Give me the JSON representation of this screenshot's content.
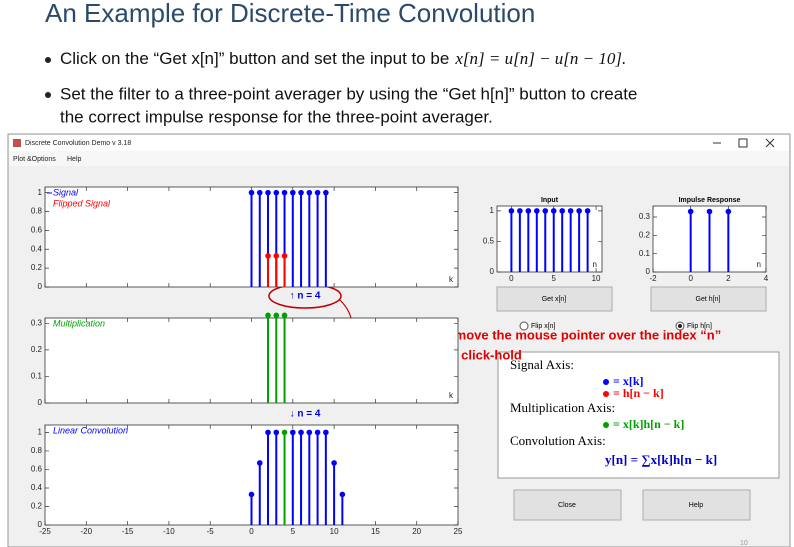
{
  "slide": {
    "title": "An Example for Discrete-Time Convolution",
    "bullets": [
      {
        "lines": [
          "Click on the “Get x[n]” button and set the input to be"
        ],
        "math": "x[n] = u[n] − u[n − 10]."
      },
      {
        "lines": [
          "Set the filter to a three-point averager by using the “Get h[n]” button to create",
          "the correct impulse response for the three-point averager."
        ]
      }
    ],
    "page_number": "10"
  },
  "window": {
    "title": "Discrete Convolution Demo v 3.18",
    "menu": [
      "Plot &Options",
      "Help"
    ]
  },
  "plots": [
    {
      "xlim": [
        -25,
        25
      ],
      "ylim": [
        0,
        1.06
      ],
      "xticks": [
        -25,
        -20,
        -15,
        -10,
        -5,
        0,
        5,
        10,
        15,
        20,
        25
      ],
      "xtick_labels": false,
      "yticks": [
        0,
        0.2,
        0.4,
        0.6,
        0.8,
        1
      ],
      "axis_label": "k",
      "series": [
        {
          "name": "Signal",
          "color": "#0000ff",
          "x": [
            0,
            1,
            2,
            3,
            4,
            5,
            6,
            7,
            8,
            9
          ],
          "values": [
            1,
            1,
            1,
            1,
            1,
            1,
            1,
            1,
            1,
            1
          ]
        },
        {
          "name": "Flipped Signal",
          "color": "#ff0000",
          "x": [
            2,
            3,
            4
          ],
          "values": [
            0.33,
            0.33,
            0.33
          ]
        }
      ]
    },
    {
      "xlim": [
        -25,
        25
      ],
      "ylim": [
        0,
        0.32
      ],
      "xticks": [
        -25,
        -20,
        -15,
        -10,
        -5,
        0,
        5,
        10,
        15,
        20,
        25
      ],
      "xtick_labels": false,
      "yticks": [
        0,
        0.1,
        0.2,
        0.3
      ],
      "axis_label": "k",
      "series": [
        {
          "name": "Multiplication",
          "color": "#00a000",
          "x": [
            2,
            3,
            4
          ],
          "values": [
            0.33,
            0.33,
            0.33
          ]
        }
      ]
    },
    {
      "xlim": [
        -25,
        25
      ],
      "ylim": [
        0,
        1.08
      ],
      "xticks": [
        -25,
        -20,
        -15,
        -10,
        -5,
        0,
        5,
        10,
        15,
        20,
        25
      ],
      "xtick_labels": true,
      "yticks": [
        0,
        0.2,
        0.4,
        0.6,
        0.8,
        1
      ],
      "highlight": {
        "x": 4,
        "color": "#00a000"
      },
      "series": [
        {
          "name": "Linear Convolution",
          "color": "#0000ff",
          "x": [
            0,
            1,
            2,
            3,
            4,
            5,
            6,
            7,
            8,
            9,
            10,
            11
          ],
          "values": [
            0.33,
            0.67,
            1,
            1,
            1,
            1,
            1,
            1,
            1,
            1,
            0.67,
            0.33
          ]
        }
      ]
    },
    {
      "title": "Input",
      "xlim": [
        -1.7,
        10.7
      ],
      "ylim": [
        0,
        1.08
      ],
      "xticks": [
        0,
        5,
        10
      ],
      "xtick_labels": true,
      "yticks": [
        0,
        0.5,
        1
      ],
      "axis_label": "n",
      "series": [
        {
          "color": "#0000ff",
          "x": [
            0,
            1,
            2,
            3,
            4,
            5,
            6,
            7,
            8,
            9
          ],
          "values": [
            1,
            1,
            1,
            1,
            1,
            1,
            1,
            1,
            1,
            1
          ]
        }
      ]
    },
    {
      "title": "Impulse Response",
      "xlim": [
        -2,
        4
      ],
      "ylim": [
        0,
        0.36
      ],
      "xticks": [
        -2,
        0,
        2,
        4
      ],
      "xtick_labels": true,
      "yticks": [
        0,
        0.1,
        0.2,
        0.3
      ],
      "axis_label": "n",
      "series": [
        {
          "color": "#0000ff",
          "x": [
            0,
            1,
            2
          ],
          "values": [
            0.33,
            0.33,
            0.33
          ]
        }
      ]
    }
  ],
  "pointer_up": "↑ n = 4",
  "pointer_down": "↓ n = 4",
  "buttons": {
    "get_x": "Get x[n]",
    "get_h": "Get h[n]",
    "close": "Close",
    "help": "Help"
  },
  "radios": {
    "flip_x": "Flip x[n]",
    "flip_h": "Flip h[n]"
  },
  "annotation": [
    "Have a try to move the mouse pointer over the index “n”",
    "here and do a click-hold"
  ],
  "legend_box": {
    "signal_axis": "Signal Axis:",
    "signal_items": [
      {
        "color": "#0000ff",
        "text": "= x[k]"
      },
      {
        "color": "#ff0000",
        "text": "= h[n − k]"
      }
    ],
    "multiplication_axis": "Multiplication Axis:",
    "multiplication_items": [
      {
        "color": "#00a000",
        "text": "= x[k]h[n − k]"
      }
    ],
    "convolution_axis": "Convolution Axis:",
    "convolution_formula": "y[n] = ∑x[k]h[n − k]"
  }
}
